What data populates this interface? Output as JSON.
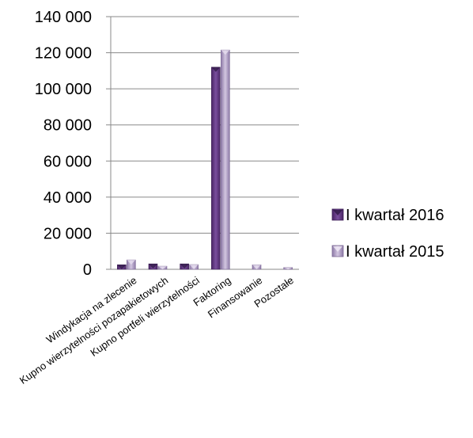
{
  "chart_data": {
    "type": "bar",
    "title": "",
    "xlabel": "",
    "ylabel": "",
    "ylim": [
      0,
      140000
    ],
    "yticks": [
      0,
      20000,
      40000,
      60000,
      80000,
      100000,
      120000,
      140000
    ],
    "ytick_labels": [
      "0",
      "20 000",
      "40 000",
      "60 000",
      "80 000",
      "100 000",
      "120 000",
      "140 000"
    ],
    "grid": true,
    "legend_position": "right",
    "categories": [
      "Windykacja na zlecenie",
      "Kupno wierzytelności pozapakietowych",
      "Kupno portfeli wierzytelności",
      "Faktoring",
      "Finansowanie",
      "Pozostałe"
    ],
    "series": [
      {
        "name": "I kwartał 2016",
        "color": "#6a3f8a",
        "values": [
          2500,
          3000,
          3000,
          112000,
          0,
          0
        ]
      },
      {
        "name": "I kwartał 2015",
        "color": "#b3a2c9",
        "values": [
          5200,
          1700,
          2600,
          121500,
          2500,
          1000
        ]
      }
    ]
  }
}
